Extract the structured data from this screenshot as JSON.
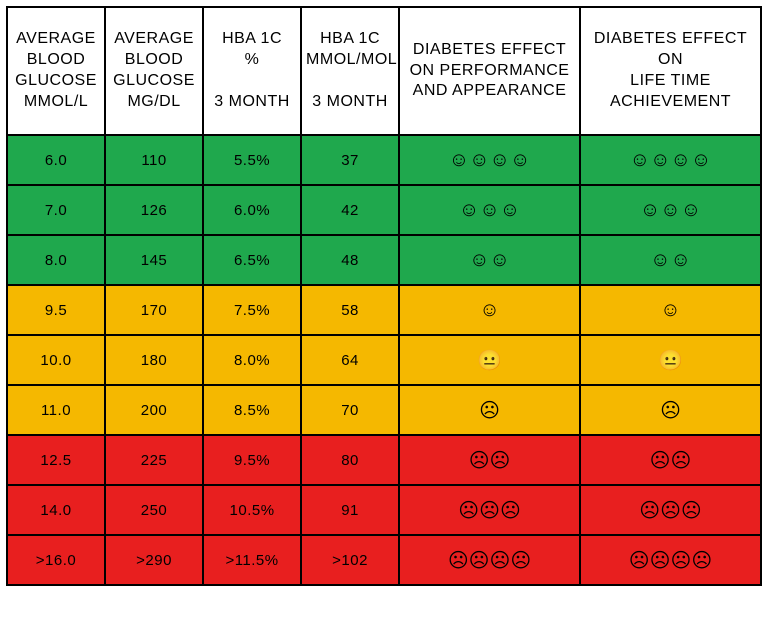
{
  "table": {
    "colors": {
      "header_bg": "#ffffff",
      "green": "#1fa84d",
      "amber": "#f5b800",
      "red": "#e81f1f",
      "border": "#000000",
      "text": "#000000"
    },
    "column_widths_pct": [
      13,
      13,
      13,
      13,
      24,
      24
    ],
    "header_fontsize": 16,
    "cell_fontsize": 15,
    "face_fontsize": 20,
    "columns": [
      "Average Blood Glucose mmol/L",
      "Average Blood Glucose mg/dL",
      "HBA 1C % 3 Month",
      "HBA 1C mmol/mol 3 Month",
      "Diabetes effect on performance and appearance",
      "Diabetes effect on life time achievement"
    ],
    "header_lines": [
      [
        "Average",
        "Blood",
        "Glucose",
        "mmol/L"
      ],
      [
        "Average",
        "Blood",
        "Glucose",
        "mg/dL"
      ],
      [
        "HBA 1C",
        "%",
        "",
        "3 Month"
      ],
      [
        "HBA 1C",
        "mmol/mol",
        "",
        "3 Month"
      ],
      [
        "Diabetes effect",
        "on performance",
        "and appearance"
      ],
      [
        "Diabetes effect on",
        "life time",
        "achievement"
      ]
    ],
    "icons": {
      "smile": "☺",
      "neutral": "☺",
      "frown": "☹"
    },
    "rows": [
      {
        "band": "green",
        "mmol_l": "6.0",
        "mg_dl": "110",
        "hba1c_pct": "5.5%",
        "hba1c_mmol": "37",
        "effect_perf": "☺☺☺☺",
        "effect_life": "☺☺☺☺"
      },
      {
        "band": "green",
        "mmol_l": "7.0",
        "mg_dl": "126",
        "hba1c_pct": "6.0%",
        "hba1c_mmol": "42",
        "effect_perf": "☺☺☺",
        "effect_life": "☺☺☺"
      },
      {
        "band": "green",
        "mmol_l": "8.0",
        "mg_dl": "145",
        "hba1c_pct": "6.5%",
        "hba1c_mmol": "48",
        "effect_perf": "☺☺",
        "effect_life": "☺☺"
      },
      {
        "band": "amber",
        "mmol_l": "9.5",
        "mg_dl": "170",
        "hba1c_pct": "7.5%",
        "hba1c_mmol": "58",
        "effect_perf": "☺",
        "effect_life": "☺"
      },
      {
        "band": "amber",
        "mmol_l": "10.0",
        "mg_dl": "180",
        "hba1c_pct": "8.0%",
        "hba1c_mmol": "64",
        "effect_perf": "😐",
        "effect_life": "😐"
      },
      {
        "band": "amber",
        "mmol_l": "11.0",
        "mg_dl": "200",
        "hba1c_pct": "8.5%",
        "hba1c_mmol": "70",
        "effect_perf": "☹",
        "effect_life": "☹"
      },
      {
        "band": "red",
        "mmol_l": "12.5",
        "mg_dl": "225",
        "hba1c_pct": "9.5%",
        "hba1c_mmol": "80",
        "effect_perf": "☹☹",
        "effect_life": "☹☹"
      },
      {
        "band": "red",
        "mmol_l": "14.0",
        "mg_dl": "250",
        "hba1c_pct": "10.5%",
        "hba1c_mmol": "91",
        "effect_perf": "☹☹☹",
        "effect_life": "☹☹☹"
      },
      {
        "band": "red",
        "mmol_l": ">16.0",
        "mg_dl": ">290",
        "hba1c_pct": ">11.5%",
        "hba1c_mmol": ">102",
        "effect_perf": "☹☹☹☹",
        "effect_life": "☹☹☹☹"
      }
    ]
  }
}
